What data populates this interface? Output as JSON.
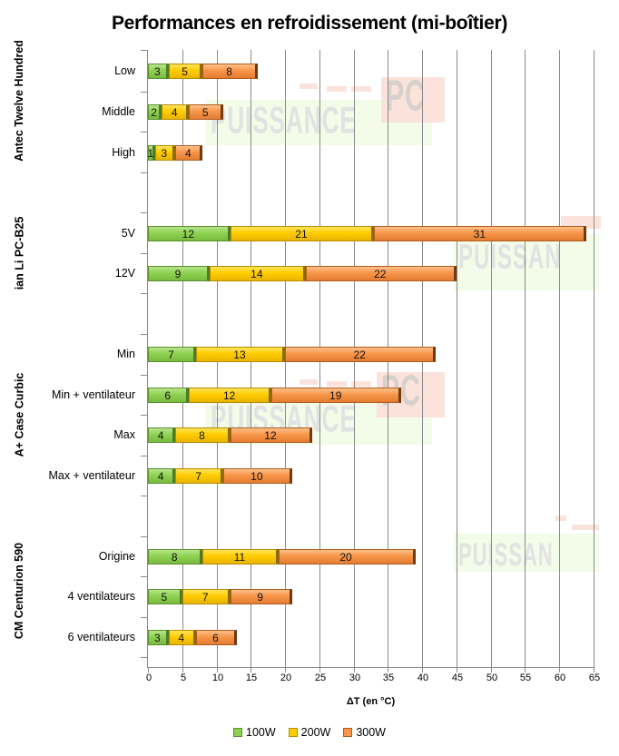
{
  "chart_data": {
    "type": "bar",
    "orientation": "horizontal",
    "stacked": true,
    "title": "Performances en refroidissement (mi-boîtier)",
    "xlabel": "ΔT (en °C)",
    "ylabel": "",
    "xlim": [
      0,
      65
    ],
    "x_ticks": [
      "0",
      "5",
      "10",
      "15",
      "20",
      "25",
      "30",
      "35",
      "40",
      "45",
      "50",
      "55",
      "60",
      "65"
    ],
    "grid": "vertical",
    "legend_position": "bottom",
    "groups": [
      {
        "name": "Antec Twelve Hundred",
        "categories": [
          "Low",
          "Middle",
          "High"
        ]
      },
      {
        "name": "ian Li PC-B25",
        "categories": [
          "5V",
          "12V"
        ]
      },
      {
        "name": "A+ Case Curbic",
        "categories": [
          "Min",
          "Min + ventilateur",
          "Max",
          "Max + ventilateur"
        ]
      },
      {
        "name": "CM Centurion 590",
        "categories": [
          "Origine",
          "4 ventilateurs",
          "6 ventilateurs"
        ]
      }
    ],
    "categories": [
      "Low",
      "Middle",
      "High",
      "5V",
      "12V",
      "Min",
      "Min + ventilateur",
      "Max",
      "Max + ventilateur",
      "Origine",
      "4 ventilateurs",
      "6 ventilateurs"
    ],
    "series": [
      {
        "name": "100W",
        "color": "#8fd152",
        "values": [
          3,
          2,
          1,
          12,
          9,
          7,
          6,
          4,
          4,
          8,
          5,
          3
        ]
      },
      {
        "name": "200W",
        "color": "#ffcc00",
        "values": [
          5,
          4,
          3,
          21,
          14,
          13,
          12,
          8,
          7,
          11,
          7,
          4
        ]
      },
      {
        "name": "300W",
        "color": "#f7964a",
        "values": [
          8,
          5,
          4,
          31,
          22,
          22,
          19,
          12,
          10,
          20,
          9,
          6
        ]
      }
    ]
  },
  "watermark": {
    "text_main": "PUISSANCE",
    "text_pc": "PC",
    "text_partial": "PUISSAN"
  }
}
